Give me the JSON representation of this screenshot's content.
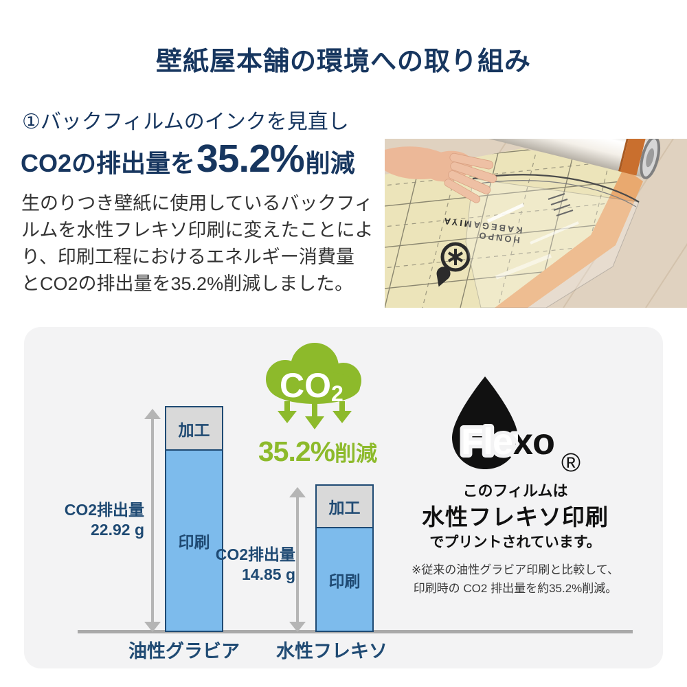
{
  "title": "壁紙屋本舗の環境への取り組み",
  "section": {
    "heading": "①バックフィルムのインクを見直し",
    "lead": {
      "prefix": "CO2の排出量を",
      "value": "35.2%",
      "suffix": "削減"
    },
    "body_lines": [
      "生のりつき壁紙に使用しているバックフィ",
      "ルムを水性フレキソ印刷に変えたことによ",
      "り、印刷工程におけるエネルギー消費量",
      "とCO2の排出量を35.2%削減しました。"
    ]
  },
  "photo": {
    "description": "透明バックフィルムを壁紙ロールから剥がす手元の写真"
  },
  "chart": {
    "bars": [
      {
        "category": "油性グラビア",
        "label_line1": "CO2排出量",
        "label_line2": "22.92 g",
        "segment_top": "加工",
        "segment_bottom": "印刷"
      },
      {
        "category": "水性フレキソ",
        "label_line1": "CO2排出量",
        "label_line2": "14.85 g",
        "segment_top": "加工",
        "segment_bottom": "印刷"
      }
    ]
  },
  "chart_data": {
    "type": "bar",
    "stacked": true,
    "categories": [
      "油性グラビア",
      "水性フレキソ"
    ],
    "series": [
      {
        "name": "印刷",
        "values": [
          18.6,
          10.6
        ],
        "color": "#7dbbec"
      },
      {
        "name": "加工",
        "values": [
          4.3,
          4.25
        ],
        "color": "#d9d9d9"
      }
    ],
    "totals_g": [
      22.92,
      14.85
    ],
    "total_labels": [
      "CO2排出量 22.92g",
      "CO2排出量 14.85g"
    ],
    "unit": "g",
    "ylabel": "CO2排出量",
    "grid": false,
    "legend": false
  },
  "co2_badge": {
    "cloud_label": "CO",
    "cloud_sub": "2",
    "reduction_value": "35.2%",
    "reduction_suffix": "削減"
  },
  "flexo": {
    "logo": "Flexo",
    "registered": "®",
    "line1": "このフィルムは",
    "line2": "水性フレキソ印刷",
    "line3": "でプリントされています。",
    "note1": "※従来の油性グラビア印刷と比較して、",
    "note2": "印刷時の CO2 排出量を約35.2%削減。"
  },
  "colors": {
    "navy": "#17365f",
    "chart_navy": "#1f4a73",
    "green": "#8dba2b",
    "bar_blue": "#7dbbec",
    "bar_gray": "#d9d9d9",
    "panel_bg": "#f3f3f4",
    "arrow_gray": "#b5b5b5"
  }
}
